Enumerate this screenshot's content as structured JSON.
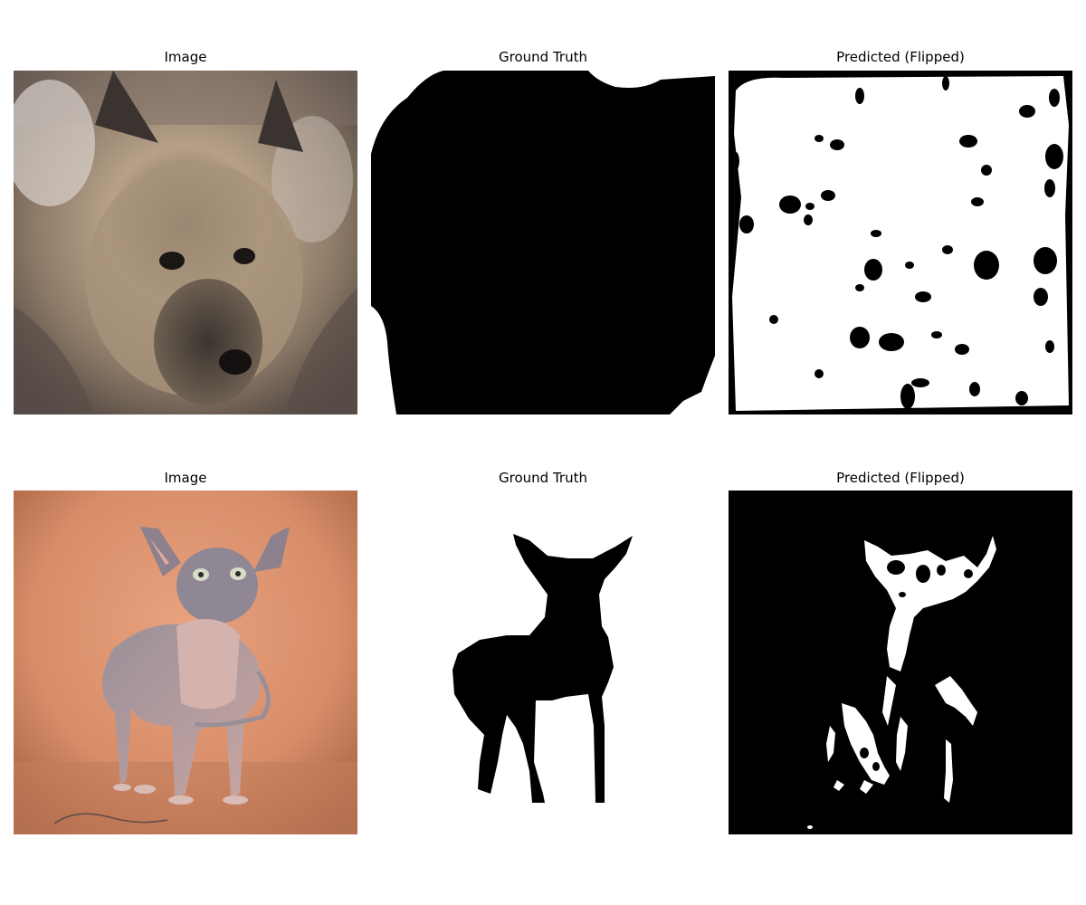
{
  "rows": [
    {
      "subject": "dog",
      "titles": [
        "Image",
        "Ground Truth",
        "Predicted (Flipped)"
      ]
    },
    {
      "subject": "cat",
      "titles": [
        "Image",
        "Ground Truth",
        "Predicted (Flipped)"
      ]
    }
  ],
  "colors": {
    "mask_foreground": "#000000",
    "mask_background": "#ffffff",
    "cat_backdrop": "#d9906b",
    "dog_fur_light": "#c8b39a",
    "dog_fur_dark": "#3d3530"
  }
}
